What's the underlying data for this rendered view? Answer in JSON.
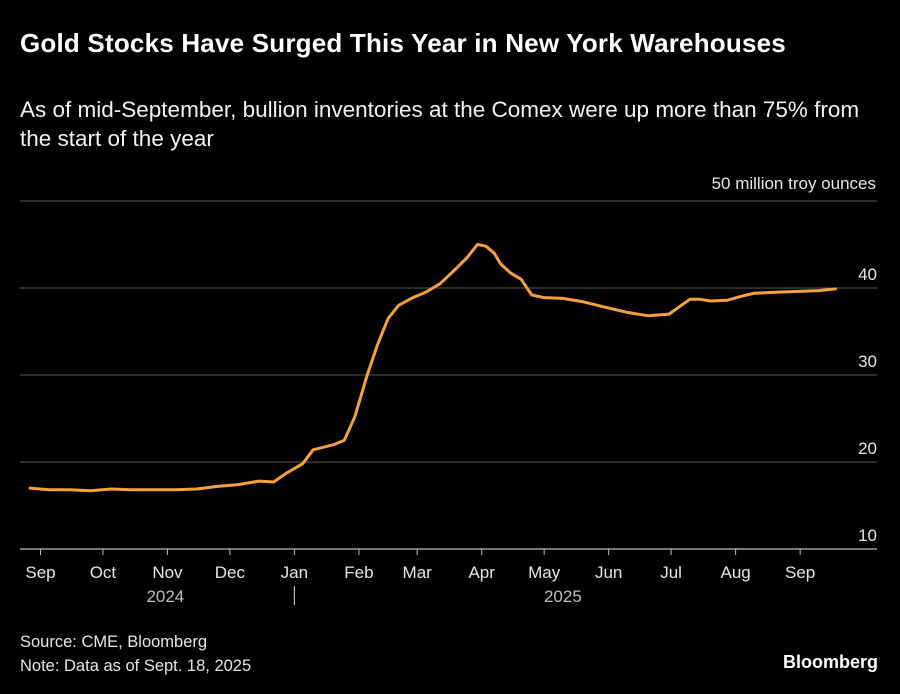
{
  "header": {
    "title": "Gold Stocks Have Surged This Year in New York Warehouses",
    "subtitle": "As of mid-September, bullion inventories at the Comex were up more than 75% from the start of the year"
  },
  "footer": {
    "source": "Source: CME, Bloomberg",
    "note": "Note: Data as of Sept. 18, 2025",
    "brand": "Bloomberg"
  },
  "colors": {
    "line": "#f5a03a",
    "grid": "#5a5a5a",
    "background": "#000000",
    "text": "#ffffff"
  },
  "chart_data": {
    "type": "line",
    "title": "Gold Stocks Have Surged This Year in New York Warehouses",
    "ylabel": "50 million troy ounces",
    "ylim": [
      10,
      50
    ],
    "yticks": [
      10,
      20,
      30,
      40
    ],
    "y_top_label": "50 million troy ounces",
    "grid": true,
    "x_axis": {
      "start": "2024-08-26",
      "end": "2025-09-24",
      "month_ticks": [
        {
          "label": "Sep",
          "date": "2024-09-01"
        },
        {
          "label": "Oct",
          "date": "2024-10-01"
        },
        {
          "label": "Nov",
          "date": "2024-11-01"
        },
        {
          "label": "Dec",
          "date": "2024-12-01"
        },
        {
          "label": "Jan",
          "date": "2025-01-01"
        },
        {
          "label": "Feb",
          "date": "2025-02-01"
        },
        {
          "label": "Mar",
          "date": "2025-03-01"
        },
        {
          "label": "Apr",
          "date": "2025-04-01"
        },
        {
          "label": "May",
          "date": "2025-05-01"
        },
        {
          "label": "Jun",
          "date": "2025-06-01"
        },
        {
          "label": "Jul",
          "date": "2025-07-01"
        },
        {
          "label": "Aug",
          "date": "2025-08-01"
        },
        {
          "label": "Sep",
          "date": "2025-09-01"
        }
      ],
      "years": [
        {
          "label": "2024",
          "date": "2024-10-31"
        },
        {
          "label": "2025",
          "date": "2025-05-10"
        }
      ],
      "year_divider_date": "2025-01-01"
    },
    "series": [
      {
        "x": [
          "2024-08-27",
          "2024-09-05",
          "2024-09-15",
          "2024-09-25",
          "2024-10-05",
          "2024-10-15",
          "2024-10-25",
          "2024-11-05",
          "2024-11-15",
          "2024-11-25",
          "2024-12-05",
          "2024-12-15",
          "2024-12-22",
          "2024-12-28",
          "2025-01-05",
          "2025-01-10",
          "2025-01-20",
          "2025-01-25",
          "2025-01-30",
          "2025-02-05",
          "2025-02-10",
          "2025-02-15",
          "2025-02-20",
          "2025-02-27",
          "2025-03-05",
          "2025-03-12",
          "2025-03-20",
          "2025-03-25",
          "2025-03-30",
          "2025-04-03",
          "2025-04-07",
          "2025-04-10",
          "2025-04-15",
          "2025-04-20",
          "2025-04-25",
          "2025-05-01",
          "2025-05-10",
          "2025-05-20",
          "2025-05-30",
          "2025-06-10",
          "2025-06-20",
          "2025-06-30",
          "2025-07-10",
          "2025-07-15",
          "2025-07-20",
          "2025-07-28",
          "2025-08-03",
          "2025-08-10",
          "2025-08-20",
          "2025-08-30",
          "2025-09-10",
          "2025-09-18"
        ],
        "values": [
          17.0,
          16.8,
          16.8,
          16.7,
          16.9,
          16.8,
          16.8,
          16.8,
          16.9,
          17.2,
          17.4,
          17.8,
          17.7,
          18.7,
          19.8,
          21.4,
          22.0,
          22.5,
          25.2,
          30.0,
          33.5,
          36.5,
          38.0,
          38.9,
          39.5,
          40.5,
          42.3,
          43.5,
          45.0,
          44.8,
          44.0,
          42.8,
          41.7,
          41.0,
          39.2,
          38.9,
          38.8,
          38.4,
          37.8,
          37.2,
          36.8,
          37.0,
          38.7,
          38.7,
          38.5,
          38.6,
          39.0,
          39.4,
          39.5,
          39.6,
          39.7,
          39.9
        ]
      }
    ]
  }
}
